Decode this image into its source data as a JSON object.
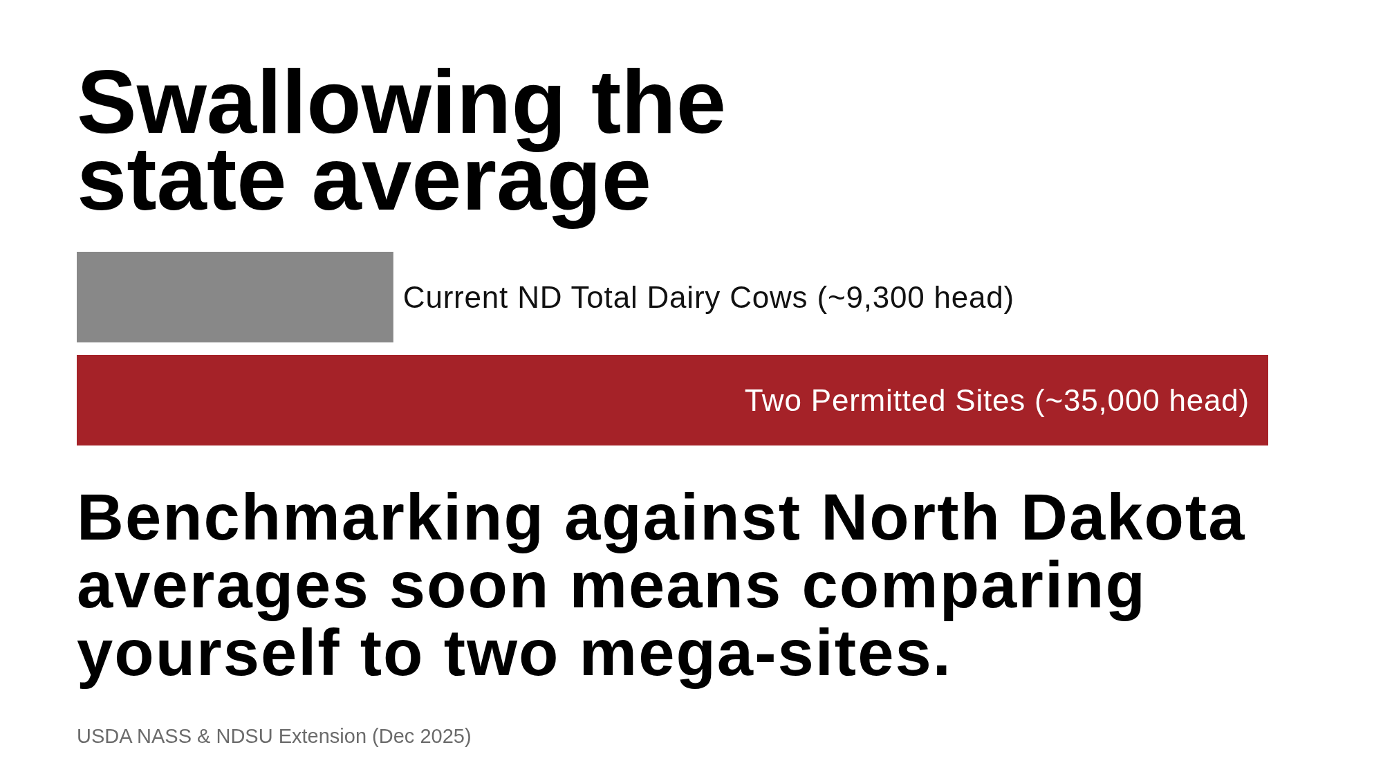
{
  "chart_data": {
    "type": "bar",
    "orientation": "horizontal",
    "title": "Swallowing the state average",
    "categories": [
      null,
      null
    ],
    "values": [
      9300,
      35000
    ],
    "value_labels": [
      "Current ND Total Dairy Cows (~9,300 head)",
      "Two Permitted Sites (~35,000 head)"
    ],
    "colors": [
      "#888888",
      "#a52228"
    ],
    "tick_labels": false,
    "annotations": [
      "Benchmarking against North Dakota averages soon means comparing yourself to two mega-sites.",
      "USDA NASS & NDSU Extension (Dec 2025)"
    ]
  }
}
